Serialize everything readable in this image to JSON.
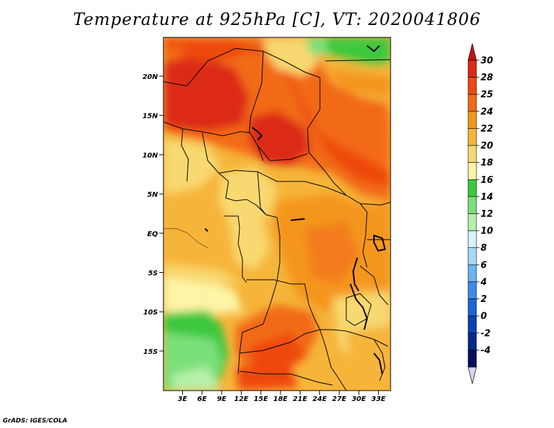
{
  "title": "Temperature at 925hPa [C], VT: 2020041806",
  "credit": "GrADS: IGES/COLA",
  "map": {
    "lat_ticks": [
      "20N",
      "15N",
      "10N",
      "5N",
      "EQ",
      "5S",
      "10S",
      "15S"
    ],
    "lon_ticks": [
      "3E",
      "6E",
      "9E",
      "12E",
      "15E",
      "18E",
      "21E",
      "24E",
      "27E",
      "30E",
      "33E"
    ]
  },
  "colorbar": {
    "levels": [
      "30",
      "28",
      "25",
      "24",
      "22",
      "20",
      "18",
      "16",
      "14",
      "12",
      "10",
      "8",
      "6",
      "4",
      "2",
      "0",
      "-2",
      "-4"
    ],
    "colors": [
      "#dc2a14",
      "#ee4a10",
      "#f26a18",
      "#f4961e",
      "#f6b43a",
      "#f8d870",
      "#fef4a6",
      "#3cc83c",
      "#7ae07a",
      "#b6f0aa",
      "#d6f2fa",
      "#a6d8fa",
      "#6ab4f0",
      "#3c8ce8",
      "#1e64d4",
      "#0a42b4",
      "#062a8a",
      "#04105c"
    ],
    "cap_top_color": "#c01410",
    "cap_bottom_color": "#d6d4f4"
  }
}
